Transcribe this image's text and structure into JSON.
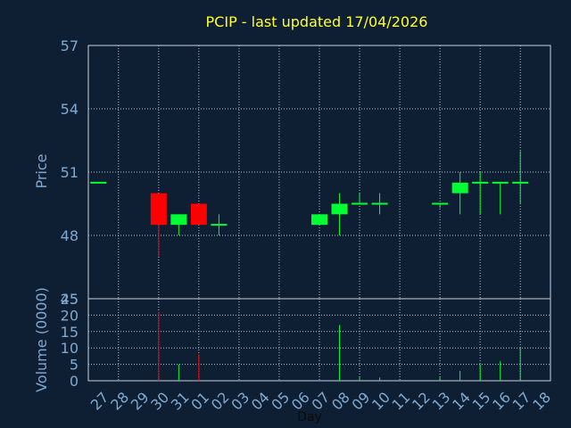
{
  "title": "PCIP - last updated 17/04/2026",
  "colors": {
    "background": "#0f1f33",
    "title": "#ffff33",
    "axis_text": "#7fa9d0",
    "grid": "#b8c4d0",
    "frame": "#c8d2dc",
    "up": "#00ff33",
    "down": "#ff0000"
  },
  "chart_data": [
    {
      "type": "candlestick",
      "ylabel": "Price",
      "ylim": [
        45,
        57
      ],
      "yticks": [
        45,
        48,
        51,
        54,
        57
      ],
      "grid": true,
      "days": [
        "27",
        "28",
        "29",
        "30",
        "31",
        "01",
        "02",
        "03",
        "04",
        "05",
        "06",
        "07",
        "08",
        "09",
        "10",
        "11",
        "12",
        "13",
        "14",
        "15",
        "16",
        "17",
        "18"
      ],
      "candles": [
        {
          "day": "27",
          "open": 50.5,
          "close": 50.5,
          "high": 50.5,
          "low": 50.5
        },
        {
          "day": "30",
          "open": 50.0,
          "close": 48.5,
          "high": 50.0,
          "low": 47.0
        },
        {
          "day": "31",
          "open": 48.5,
          "close": 49.0,
          "high": 49.0,
          "low": 48.0
        },
        {
          "day": "01",
          "open": 49.5,
          "close": 48.5,
          "high": 49.5,
          "low": 48.5
        },
        {
          "day": "02",
          "open": 48.5,
          "close": 48.5,
          "high": 49.0,
          "low": 48.0
        },
        {
          "day": "07",
          "open": 48.5,
          "close": 49.0,
          "high": 49.0,
          "low": 48.5
        },
        {
          "day": "08",
          "open": 49.0,
          "close": 49.5,
          "high": 50.0,
          "low": 48.0
        },
        {
          "day": "09",
          "open": 49.5,
          "close": 49.5,
          "high": 50.0,
          "low": 49.5
        },
        {
          "day": "10",
          "open": 49.5,
          "close": 49.5,
          "high": 50.0,
          "low": 49.0
        },
        {
          "day": "13",
          "open": 49.5,
          "close": 49.5,
          "high": 49.5,
          "low": 49.3
        },
        {
          "day": "14",
          "open": 50.0,
          "close": 50.5,
          "high": 51.0,
          "low": 49.0
        },
        {
          "day": "15",
          "open": 50.5,
          "close": 50.5,
          "high": 51.0,
          "low": 49.0
        },
        {
          "day": "16",
          "open": 50.5,
          "close": 50.5,
          "high": 50.5,
          "low": 49.0
        },
        {
          "day": "17",
          "open": 50.5,
          "close": 50.5,
          "high": 52.0,
          "low": 49.5
        }
      ]
    },
    {
      "type": "bar",
      "xlabel": "Day",
      "ylabel": "Volume (0000)",
      "ylim": [
        0,
        25
      ],
      "yticks": [
        0,
        5,
        10,
        15,
        20,
        25
      ],
      "grid": true,
      "bars": [
        {
          "day": "30",
          "value": 21,
          "direction": "down"
        },
        {
          "day": "31",
          "value": 5,
          "direction": "up"
        },
        {
          "day": "01",
          "value": 8,
          "direction": "down"
        },
        {
          "day": "08",
          "value": 17,
          "direction": "up"
        },
        {
          "day": "09",
          "value": 1,
          "direction": "up"
        },
        {
          "day": "10",
          "value": 1,
          "direction": "up"
        },
        {
          "day": "13",
          "value": 1,
          "direction": "up"
        },
        {
          "day": "14",
          "value": 3,
          "direction": "up"
        },
        {
          "day": "15",
          "value": 5,
          "direction": "up"
        },
        {
          "day": "16",
          "value": 6,
          "direction": "up"
        },
        {
          "day": "17",
          "value": 10,
          "direction": "up"
        }
      ]
    }
  ]
}
